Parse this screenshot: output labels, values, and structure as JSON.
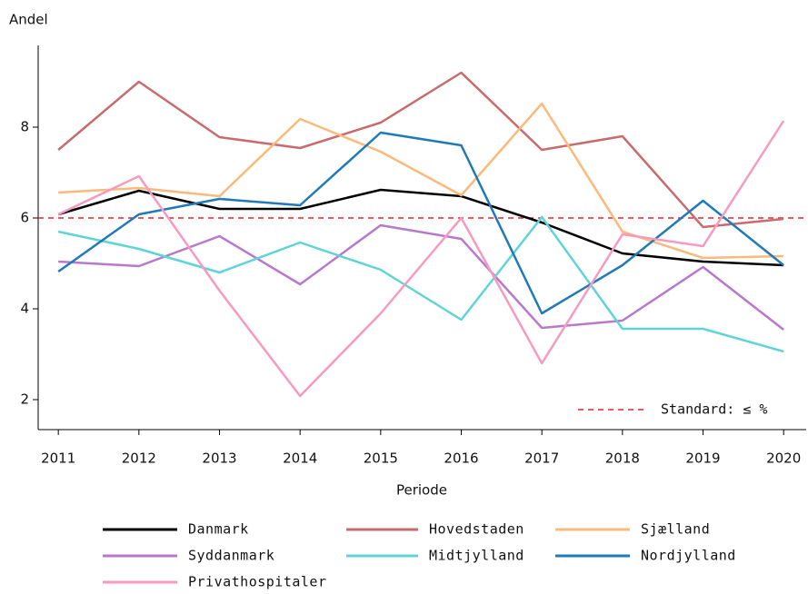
{
  "chart_data": {
    "type": "line",
    "y_label": "Andel",
    "x_label": "Periode",
    "x": [
      2011,
      2012,
      2013,
      2014,
      2015,
      2016,
      2017,
      2018,
      2019,
      2020
    ],
    "xlim": [
      2010.75,
      2020.28
    ],
    "xticks": [
      2011,
      2012,
      2013,
      2014,
      2015,
      2016,
      2017,
      2018,
      2019,
      2020
    ],
    "ylim": [
      1.34,
      9.8
    ],
    "yticks": [
      2,
      4,
      6,
      8
    ],
    "grid": false,
    "legend": "bottom",
    "reference_line": {
      "value": 6,
      "label": "Standard: ≤ %",
      "color": "#e8202a"
    },
    "series": [
      {
        "name": "Danmark",
        "color": "#000000",
        "values": [
          6.08,
          6.6,
          6.2,
          6.2,
          6.62,
          6.48,
          5.9,
          5.22,
          5.04,
          4.96
        ]
      },
      {
        "name": "Hovedstaden",
        "color": "#c96b6e",
        "values": [
          7.5,
          9.0,
          7.78,
          7.54,
          8.1,
          9.2,
          7.5,
          7.8,
          5.8,
          5.98
        ]
      },
      {
        "name": "Sjælland",
        "color": "#fbb97a",
        "values": [
          6.56,
          6.66,
          6.48,
          8.18,
          7.46,
          6.5,
          8.52,
          5.7,
          5.12,
          5.16
        ]
      },
      {
        "name": "Syddanmark",
        "color": "#b878cc",
        "values": [
          5.04,
          4.94,
          5.6,
          4.54,
          5.84,
          5.54,
          3.58,
          3.74,
          4.92,
          3.54
        ]
      },
      {
        "name": "Midtjylland",
        "color": "#5fd4d8",
        "values": [
          5.7,
          5.32,
          4.8,
          5.46,
          4.86,
          3.76,
          6.02,
          3.56,
          3.56,
          3.06
        ]
      },
      {
        "name": "Nordjylland",
        "color": "#1f7ab8",
        "values": [
          4.82,
          6.08,
          6.42,
          6.28,
          7.88,
          7.6,
          3.9,
          4.96,
          6.38,
          4.96
        ]
      },
      {
        "name": "Privathospitaler",
        "color": "#f79ac0",
        "values": [
          6.08,
          6.92,
          4.4,
          2.08,
          3.9,
          6.0,
          2.8,
          5.64,
          5.38,
          8.14
        ]
      }
    ]
  }
}
